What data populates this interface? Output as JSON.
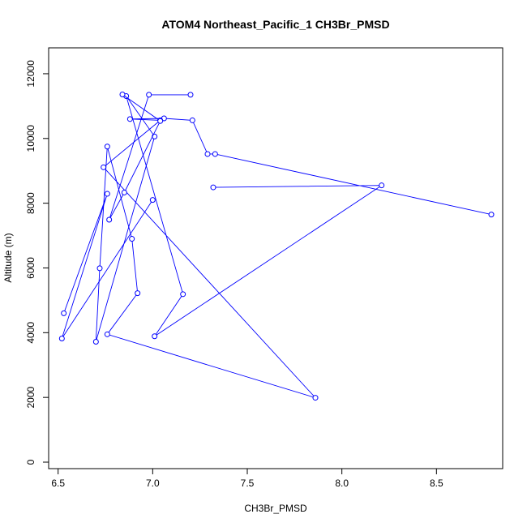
{
  "chart_data": {
    "type": "line",
    "title": "ATOM4 Northeast_Pacific_1 CH3Br_PMSD",
    "xlabel": "CH3Br_PMSD",
    "ylabel": "Altitude (m)",
    "xlim": [
      6.45,
      8.85
    ],
    "ylim": [
      -200,
      12800
    ],
    "xticks": [
      6.5,
      7.0,
      7.5,
      8.0,
      8.5
    ],
    "xtick_labels": [
      "6.5",
      "7.0",
      "7.5",
      "8.0",
      "8.5"
    ],
    "yticks": [
      0,
      2000,
      4000,
      6000,
      8000,
      10000,
      12000
    ],
    "ytick_labels": [
      "0",
      "2000",
      "4000",
      "6000",
      "8000",
      "10000",
      "12000"
    ],
    "grid": false,
    "series_color": "#0000ff",
    "series": [
      {
        "points": [
          [
            8.79,
            7650
          ],
          [
            7.33,
            9520
          ],
          [
            7.29,
            9520
          ],
          [
            7.21,
            10560
          ],
          [
            7.06,
            10620
          ],
          [
            6.88,
            10600
          ],
          [
            7.04,
            10560
          ],
          [
            6.74,
            9110
          ],
          [
            7.86,
            1990
          ],
          [
            6.76,
            3950
          ],
          [
            6.92,
            5220
          ],
          [
            6.89,
            6900
          ],
          [
            6.76,
            9750
          ],
          [
            6.72,
            5990
          ],
          [
            6.7,
            3720
          ],
          [
            7.01,
            10060
          ],
          [
            6.86,
            11310
          ],
          [
            7.16,
            5190
          ],
          [
            7.01,
            3890
          ],
          [
            8.21,
            8550
          ],
          [
            7.32,
            8490
          ]
        ]
      },
      {
        "points": [
          [
            6.84,
            11360
          ],
          [
            7.04,
            10540
          ],
          [
            6.85,
            8330
          ],
          [
            6.77,
            7490
          ],
          [
            6.98,
            11350
          ],
          [
            7.2,
            11350
          ]
        ]
      },
      {
        "points": [
          [
            6.53,
            4600
          ],
          [
            6.76,
            8290
          ],
          [
            6.52,
            3820
          ],
          [
            7.0,
            8100
          ]
        ]
      }
    ]
  }
}
